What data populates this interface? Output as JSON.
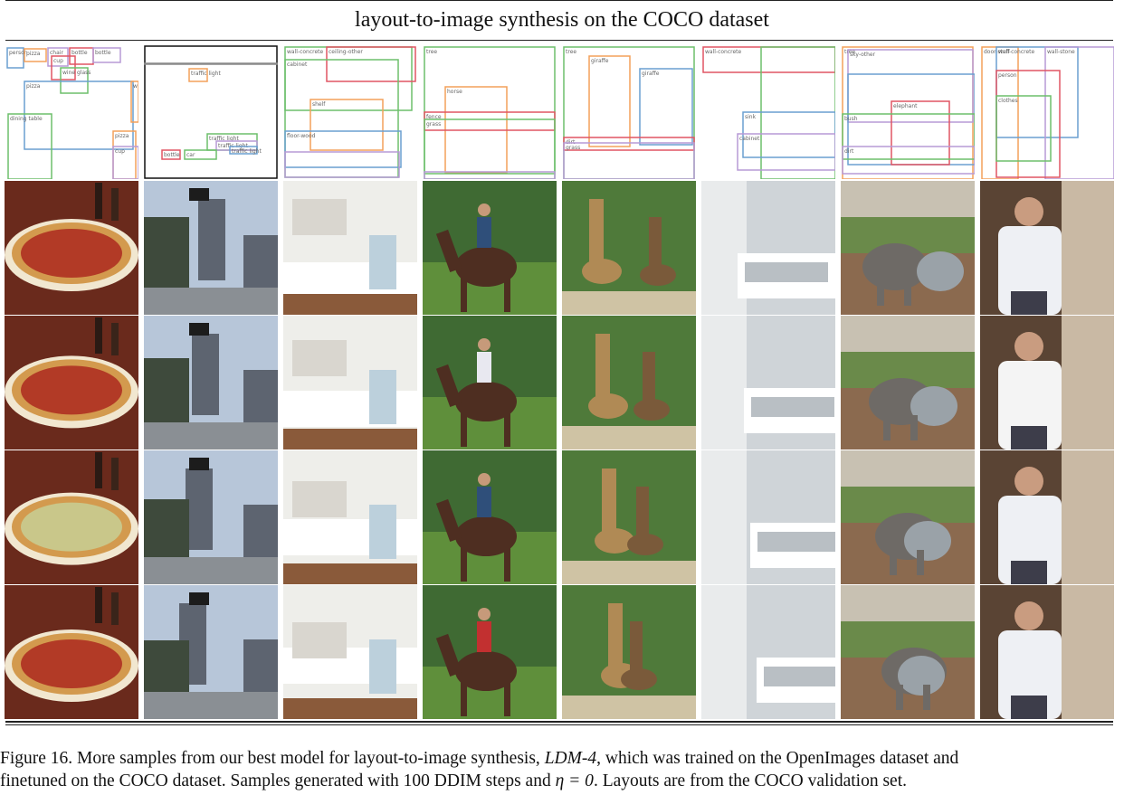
{
  "figure": {
    "title": "layout-to-image synthesis on the COCO dataset",
    "caption_line1_a": "Figure 16.  More samples from our best model for layout-to-image synthesis, ",
    "caption_model": "LDM-4",
    "caption_line1_b": ", which was trained on the OpenImages dataset and",
    "caption_line2_a": "finetuned on the COCO dataset. Samples generated with 100 DDIM steps and ",
    "caption_eta": "η = 0",
    "caption_line2_b": ". Layouts are from the COCO validation set."
  },
  "colors": {
    "blue": "#6a9fd0",
    "orange": "#f3a05a",
    "green": "#6dbf6b",
    "red": "#e05563",
    "purple": "#b79ad6",
    "gray": "#8a8a8a",
    "black": "#111111"
  },
  "layouts": [
    {
      "boxes": [
        {
          "label": "person",
          "color": "blue"
        },
        {
          "label": "pizza",
          "color": "orange"
        },
        {
          "label": "chair",
          "color": "purple"
        },
        {
          "label": "bottle",
          "color": "red"
        },
        {
          "label": "bottle",
          "color": "purple"
        },
        {
          "label": "cup",
          "color": "red"
        },
        {
          "label": "wine glass",
          "color": "green"
        },
        {
          "label": "pizza",
          "color": "blue"
        },
        {
          "label": "dining table",
          "color": "green"
        },
        {
          "label": "pizza",
          "color": "orange"
        },
        {
          "label": "w",
          "color": "orange"
        },
        {
          "label": "cup",
          "color": "purple"
        }
      ]
    },
    {
      "boxes": [
        {
          "label": "",
          "color": "black"
        },
        {
          "label": "",
          "color": "gray"
        },
        {
          "label": "traffic light",
          "color": "orange"
        },
        {
          "label": "traffic light",
          "color": "green"
        },
        {
          "label": "traffic light",
          "color": "purple"
        },
        {
          "label": "traffic light",
          "color": "blue"
        },
        {
          "label": "bottle",
          "color": "red"
        },
        {
          "label": "car",
          "color": "green"
        }
      ]
    },
    {
      "boxes": [
        {
          "label": "wall-concrete",
          "color": "green"
        },
        {
          "label": "ceiling-other",
          "color": "red"
        },
        {
          "label": "cabinet",
          "color": "green"
        },
        {
          "label": "shelf",
          "color": "orange"
        },
        {
          "label": "floor-wood",
          "color": "blue"
        },
        {
          "label": "",
          "color": "purple"
        }
      ]
    },
    {
      "boxes": [
        {
          "label": "tree",
          "color": "green"
        },
        {
          "label": "horse",
          "color": "orange"
        },
        {
          "label": "fence",
          "color": "red"
        },
        {
          "label": "grass",
          "color": "green"
        },
        {
          "label": "",
          "color": "purple"
        }
      ]
    },
    {
      "boxes": [
        {
          "label": "tree",
          "color": "green"
        },
        {
          "label": "giraffe",
          "color": "orange"
        },
        {
          "label": "giraffe",
          "color": "blue"
        },
        {
          "label": "dirt",
          "color": "red"
        },
        {
          "label": "grass",
          "color": "purple"
        }
      ]
    },
    {
      "boxes": [
        {
          "label": "wall-concrete",
          "color": "red"
        },
        {
          "label": "",
          "color": "green"
        },
        {
          "label": "sink",
          "color": "blue"
        },
        {
          "label": "cabinet",
          "color": "purple"
        }
      ]
    },
    {
      "boxes": [
        {
          "label": "tree",
          "color": "orange"
        },
        {
          "label": "sky-other",
          "color": "purple"
        },
        {
          "label": "",
          "color": "blue"
        },
        {
          "label": "elephant",
          "color": "red"
        },
        {
          "label": "bush",
          "color": "green"
        },
        {
          "label": "dirt",
          "color": "purple"
        }
      ]
    },
    {
      "boxes": [
        {
          "label": "door-stuff",
          "color": "orange"
        },
        {
          "label": "wall-concrete",
          "color": "blue"
        },
        {
          "label": "wall-stone",
          "color": "purple"
        },
        {
          "label": "person",
          "color": "red"
        },
        {
          "label": "clothes",
          "color": "green"
        }
      ]
    }
  ],
  "samples": [
    {
      "scene": "pizza",
      "colors": [
        "#6a2a1c",
        "#d39a4e",
        "#b23a26",
        "#f1e7d0"
      ]
    },
    {
      "scene": "street",
      "colors": [
        "#b7c6d9",
        "#5d6470",
        "#3e4a3c",
        "#8a8f94"
      ]
    },
    {
      "scene": "kitchen",
      "colors": [
        "#eeeeea",
        "#d9d6cf",
        "#8a5a3a",
        "#ffffff"
      ]
    },
    {
      "scene": "horse",
      "colors": [
        "#5f8f3b",
        "#4e2e21",
        "#2f4f7a",
        "#c23030"
      ]
    },
    {
      "scene": "giraffe",
      "colors": [
        "#4f7a3a",
        "#b08a55",
        "#7a5a3a",
        "#cfc3a4"
      ]
    },
    {
      "scene": "bathroom",
      "colors": [
        "#e9ebec",
        "#cfd4d8",
        "#ffffff",
        "#b9bfc4"
      ]
    },
    {
      "scene": "elephant",
      "colors": [
        "#9aa2a8",
        "#6e6a66",
        "#8b6a4f",
        "#c8c1b2"
      ]
    },
    {
      "scene": "person",
      "colors": [
        "#5a4434",
        "#eef0f4",
        "#c9b9a4",
        "#3d3d4a"
      ]
    }
  ]
}
